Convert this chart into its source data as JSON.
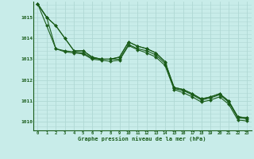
{
  "title": "Graphe pression niveau de la mer (hPa)",
  "background_color": "#c8ece9",
  "grid_color": "#b0d8d4",
  "line_color": "#1a5c1a",
  "text_color": "#1a5c1a",
  "xlim": [
    -0.5,
    23.5
  ],
  "ylim": [
    1009.6,
    1015.75
  ],
  "yticks": [
    1010,
    1011,
    1012,
    1013,
    1014,
    1015
  ],
  "xtick_labels": [
    "0",
    "1",
    "2",
    "3",
    "4",
    "5",
    "6",
    "7",
    "8",
    "9",
    "10",
    "11",
    "12",
    "13",
    "14",
    "15",
    "16",
    "17",
    "18",
    "19",
    "20",
    "21",
    "22",
    "23"
  ],
  "series": [
    [
      1015.65,
      1015.0,
      1014.6,
      1014.0,
      1013.4,
      1013.4,
      1013.1,
      1013.0,
      1013.0,
      1013.1,
      1013.82,
      1013.62,
      1013.5,
      1013.3,
      1012.88,
      1011.65,
      1011.55,
      1011.35,
      1011.1,
      1011.2,
      1011.35,
      1011.0,
      1010.25,
      1010.2
    ],
    [
      1015.65,
      1015.0,
      1014.6,
      1014.0,
      1013.4,
      1013.4,
      1013.1,
      1013.0,
      1013.0,
      1013.1,
      1013.82,
      1013.62,
      1013.5,
      1013.3,
      1012.88,
      1011.65,
      1011.55,
      1011.35,
      1011.1,
      1011.2,
      1011.35,
      1011.0,
      1010.25,
      1010.2
    ],
    [
      1015.65,
      1014.6,
      1013.5,
      1013.4,
      1013.35,
      1013.3,
      1013.05,
      1013.0,
      1013.0,
      1013.0,
      1013.7,
      1013.5,
      1013.4,
      1013.2,
      1012.8,
      1011.6,
      1011.5,
      1011.3,
      1011.05,
      1011.15,
      1011.3,
      1010.95,
      1010.2,
      1010.15
    ],
    [
      1015.65,
      1015.0,
      1013.5,
      1013.35,
      1013.3,
      1013.25,
      1013.0,
      1012.95,
      1012.9,
      1012.95,
      1013.65,
      1013.45,
      1013.3,
      1013.1,
      1012.7,
      1011.55,
      1011.4,
      1011.2,
      1010.95,
      1011.05,
      1011.2,
      1010.85,
      1010.1,
      1010.05
    ]
  ],
  "marker": "D",
  "markersize": 2.0,
  "linewidth": 0.8
}
